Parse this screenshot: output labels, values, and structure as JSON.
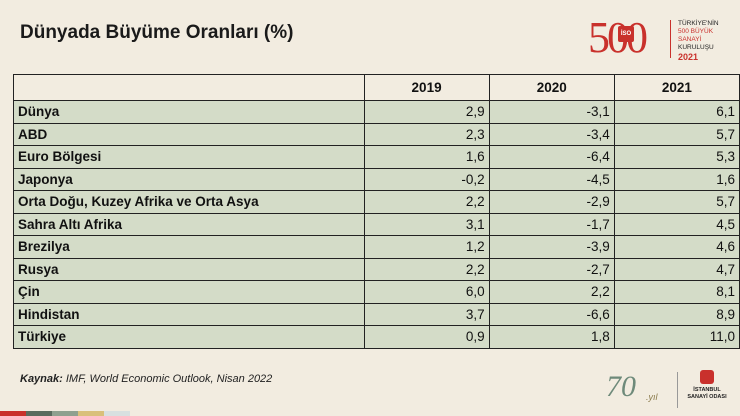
{
  "title": "Dünyada Büyüme Oranları (%)",
  "logo": {
    "number": "500",
    "badge": "İSO",
    "line1": "TÜRKİYE'NİN",
    "line2": "500 BÜYÜK SANAYİ",
    "line3": "KURULUŞU",
    "year": "2021"
  },
  "table": {
    "headers": [
      "",
      "2019",
      "2020",
      "2021"
    ],
    "rows": [
      {
        "label": "Dünya",
        "v2019": "2,9",
        "v2020": "-3,1",
        "v2021": "6,1"
      },
      {
        "label": "ABD",
        "v2019": "2,3",
        "v2020": "-3,4",
        "v2021": "5,7"
      },
      {
        "label": "Euro Bölgesi",
        "v2019": "1,6",
        "v2020": "-6,4",
        "v2021": "5,3"
      },
      {
        "label": "Japonya",
        "v2019": "-0,2",
        "v2020": "-4,5",
        "v2021": "1,6"
      },
      {
        "label": "Orta Doğu, Kuzey Afrika ve Orta Asya",
        "v2019": "2,2",
        "v2020": "-2,9",
        "v2021": "5,7"
      },
      {
        "label": "Sahra Altı Afrika",
        "v2019": "3,1",
        "v2020": "-1,7",
        "v2021": "4,5"
      },
      {
        "label": "Brezilya",
        "v2019": "1,2",
        "v2020": "-3,9",
        "v2021": "4,6"
      },
      {
        "label": "Rusya",
        "v2019": "2,2",
        "v2020": "-2,7",
        "v2021": "4,7"
      },
      {
        "label": "Çin",
        "v2019": "6,0",
        "v2020": "2,2",
        "v2021": "8,1"
      },
      {
        "label": "Hindistan",
        "v2019": "3,7",
        "v2020": "-6,6",
        "v2021": "8,9"
      },
      {
        "label": "Türkiye",
        "v2019": "0,9",
        "v2020": "1,8",
        "v2021": "11,0"
      }
    ]
  },
  "source": {
    "label": "Kaynak:",
    "text": " IMF, World Economic Outlook, Nisan 2022"
  },
  "footer": {
    "anniversary_number": "70",
    "anniversary_suffix": ".yıl",
    "org_line1": "İSTANBUL",
    "org_line2": "SANAYİ ODASI",
    "bar_colors": [
      "#c9312c",
      "#5a6b5e",
      "#8fa08f",
      "#d9c07a",
      "#d8e0e0"
    ]
  },
  "colors": {
    "background": "#f2ece0",
    "cell": "#d4dcc8",
    "accent": "#c9312c"
  }
}
